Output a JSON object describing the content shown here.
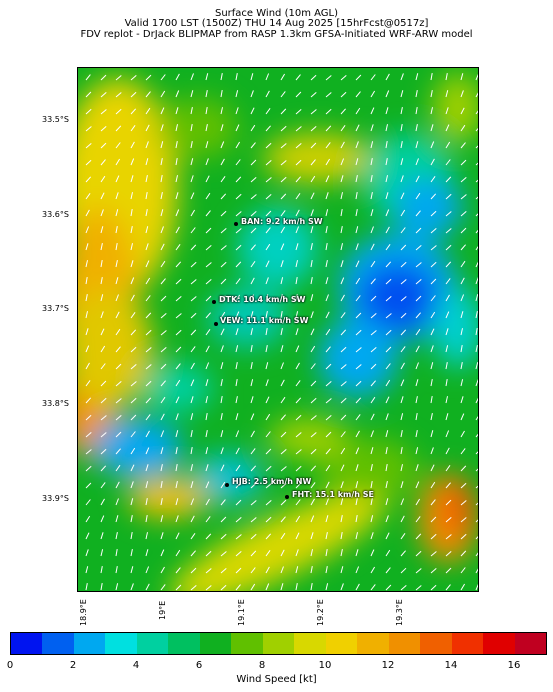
{
  "title": {
    "line1": "Surface Wind (10m AGL)",
    "line2": "Valid 1700 LST (1500Z) THU 14 Aug 2025 [15hrFcst@0517z]",
    "line3": "FDV replot - DrJack BLIPMAP from RASP 1.3km GFSA-Initiated WRF-ARW model"
  },
  "map": {
    "lat_labels": [
      "33.5°S",
      "33.6°S",
      "33.7°S",
      "33.8°S",
      "33.9°S"
    ],
    "lon_labels": [
      "18.9°E",
      "19°E",
      "19.1°E",
      "19.2°E",
      "19.3°E"
    ],
    "stations": [
      {
        "id": "BAN",
        "label": "BAN: 9.2 km/h SW"
      },
      {
        "id": "DTK",
        "label": "DTK: 10.4 km/h SW"
      },
      {
        "id": "VEW",
        "label": "VEW: 11.1 km/h SW"
      },
      {
        "id": "HJB",
        "label": "HJB: 2.5 km/h NW"
      },
      {
        "id": "FHT",
        "label": "FHT: 15.1 km/h SE"
      }
    ]
  },
  "colorbar": {
    "title": "Wind Speed [kt]",
    "tick_labels": [
      "0",
      "2",
      "4",
      "6",
      "8",
      "10",
      "12",
      "14",
      "16"
    ],
    "colors": [
      "#0014f0",
      "#0060f0",
      "#00a8f0",
      "#00e0e0",
      "#00d0a0",
      "#00c060",
      "#10b020",
      "#60c000",
      "#a0d000",
      "#d8d800",
      "#f0d000",
      "#f0b000",
      "#f09000",
      "#f06000",
      "#f03000",
      "#e00000",
      "#c00020"
    ]
  }
}
